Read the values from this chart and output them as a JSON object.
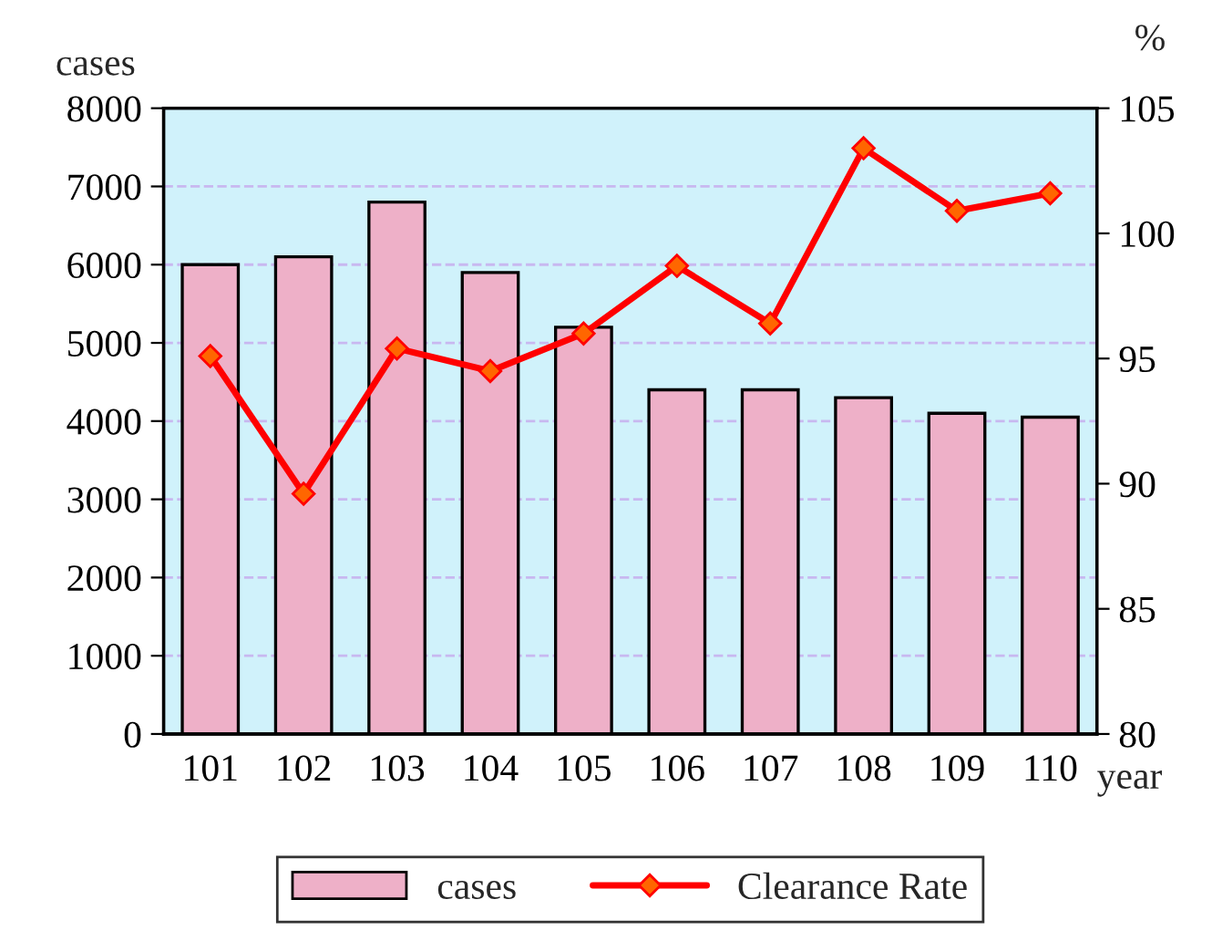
{
  "chart_data": {
    "type": "bar",
    "categories": [
      "101",
      "102",
      "103",
      "104",
      "105",
      "106",
      "107",
      "108",
      "109",
      "110"
    ],
    "series": [
      {
        "name": "cases",
        "color": "#eeb0c8",
        "values": [
          6000,
          6100,
          6800,
          5900,
          5200,
          4400,
          4400,
          4300,
          4100,
          4050
        ]
      },
      {
        "name": "Clearance Rate",
        "type": "line",
        "axis": "y2",
        "color": "#ff0000",
        "values": [
          95.1,
          89.6,
          95.4,
          94.5,
          96.0,
          98.7,
          96.4,
          103.4,
          100.9,
          101.6
        ]
      }
    ],
    "xlabel": "year",
    "ylabel": "cases",
    "y2label": "%",
    "ylim": [
      0,
      8000
    ],
    "yticks": [
      0,
      1000,
      2000,
      3000,
      4000,
      5000,
      6000,
      7000,
      8000
    ],
    "y2lim": [
      80,
      105
    ],
    "y2ticks": [
      80,
      85,
      90,
      95,
      100,
      105
    ],
    "grid": "y",
    "legend": "bottom",
    "marker": "diamond",
    "line_style": "solid"
  }
}
